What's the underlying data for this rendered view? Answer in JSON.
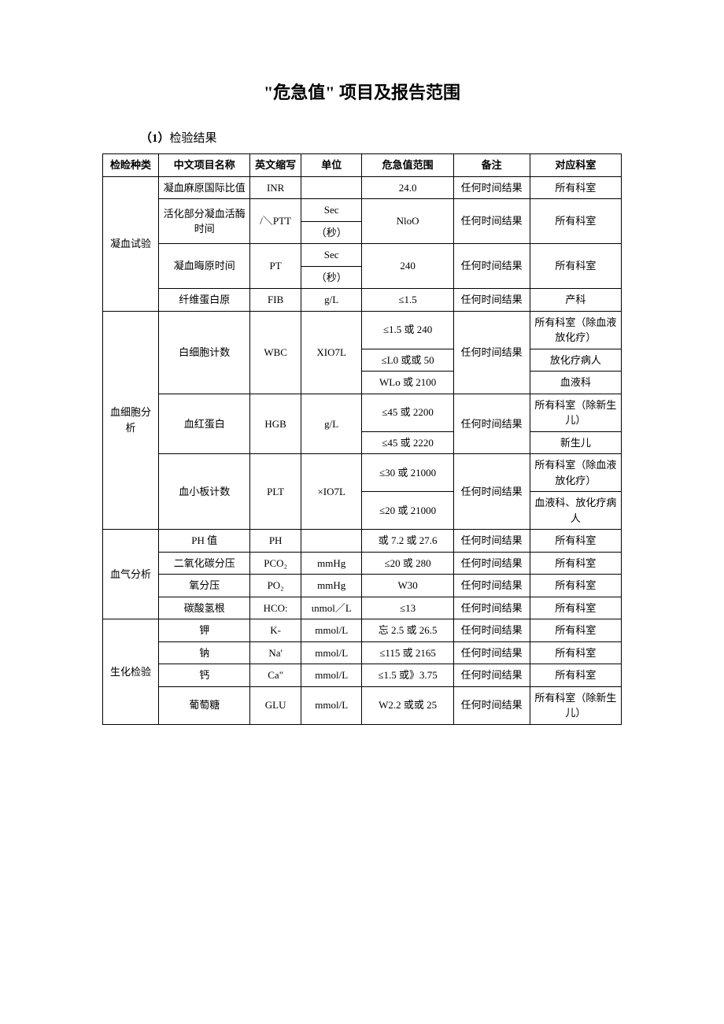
{
  "title": "\"危急值\" 项目及报告范围",
  "subheading_prefix": "（1）",
  "subheading_text": "检验结果",
  "headers": {
    "category": "检睑种类",
    "name_cn": "中文项目名称",
    "abbrev": "英文缩写",
    "unit": "单位",
    "range": "危急值范围",
    "remark": "备注",
    "dept": "对应科室"
  },
  "groups": [
    {
      "category": "凝血试验",
      "rows": [
        {
          "name": "凝血麻原国际比值",
          "abbrev": "INR",
          "unit": "",
          "range": "24.0",
          "remark": "任何时间结果",
          "dept": "所有科室"
        },
        {
          "name": "活化部分凝血活酶时间",
          "abbrev": "/＼PTT",
          "unit_top": "Sec",
          "unit_bot": "（秒）",
          "range": "NloO",
          "remark": "任何时间结果",
          "dept": "所有科室"
        },
        {
          "name": "凝血晦原时间",
          "abbrev": "PT",
          "unit_top": "Sec",
          "unit_bot": "（秒）",
          "range": "240",
          "remark": "任何时间结果",
          "dept": "所有科室"
        },
        {
          "name": "纤维蛋白原",
          "abbrev": "FIB",
          "unit": "g/L",
          "range": "≤1.5",
          "remark": "任何时间结果",
          "dept": "产科"
        }
      ]
    },
    {
      "category": "血细胞分析",
      "rows": [
        {
          "name": "白细胞计数",
          "abbrev": "WBC",
          "unit": "XIO7L",
          "ranges": [
            "≤1.5 或 240",
            "≤L0 或或 50",
            "WLo 或 2100"
          ],
          "remark": "任何时间结果",
          "depts": [
            "所有科室（除血液放化疗）",
            "放化疗病人",
            "血液科"
          ]
        },
        {
          "name": "血红蛋白",
          "abbrev": "HGB",
          "unit": "g/L",
          "ranges": [
            "≤45 或 2200",
            "≤45 或 2220"
          ],
          "remark": "任何时间结果",
          "depts": [
            "所有科室（除新生儿）",
            "新生儿"
          ]
        },
        {
          "name": "血小板计数",
          "abbrev": "PLT",
          "unit": "×IO7L",
          "ranges": [
            "≤30 或 21000",
            "≤20 或 21000"
          ],
          "remark": "任何时间结果",
          "depts": [
            "所有科室（除血液放化疗）",
            "血液科、放化疗病人"
          ]
        }
      ]
    },
    {
      "category": "血气分析",
      "rows": [
        {
          "name": "PH 值",
          "abbrev": "PH",
          "unit": "",
          "range": "或 7.2 或 27.6",
          "remark": "任何时间结果",
          "dept": "所有科室"
        },
        {
          "name": "二氧化碳分压",
          "abbrev": "PCO₂",
          "unit": "mmHg",
          "range": "≤20 或 280",
          "remark": "任何时间结果",
          "dept": "所有科室"
        },
        {
          "name": "氧分压",
          "abbrev": "PO₂",
          "unit": "mmHg",
          "range": "W30",
          "remark": "任何时间结果",
          "dept": "所有科室"
        },
        {
          "name": "碳酸氢根",
          "abbrev": "HCO:",
          "unit": "ιnmol／L",
          "range": "≤13",
          "remark": "任何时间结果",
          "dept": "所有科室"
        }
      ]
    },
    {
      "category": "生化检验",
      "rows": [
        {
          "name": "钾",
          "abbrev": "K-",
          "unit": "mmol/L",
          "range": "忘 2.5 或 26.5",
          "remark": "任何时间结果",
          "dept": "所有科室"
        },
        {
          "name": "钠",
          "abbrev": "Na'",
          "unit": "mmol/L",
          "range": "≤115 或 2165",
          "remark": "任何时间结果",
          "dept": "所有科室"
        },
        {
          "name": "钙",
          "abbrev": "Ca\"",
          "unit": "mmol/L",
          "range": "≤1.5 或》3.75",
          "remark": "任何时间结果",
          "dept": "所有科室"
        },
        {
          "name": "葡萄糖",
          "abbrev": "GLU",
          "unit": "mmol/L",
          "range": "W2.2 或或 25",
          "remark": "任何时间结果",
          "dept": "所有科室（除新生儿）"
        }
      ]
    }
  ]
}
